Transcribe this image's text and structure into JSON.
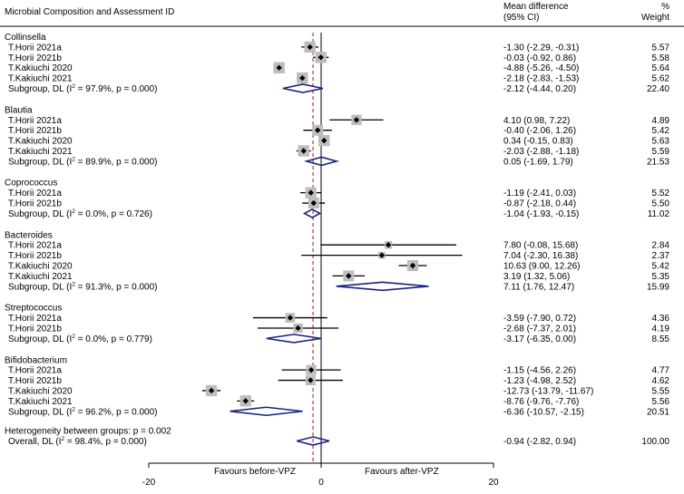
{
  "chart_data": {
    "type": "forest",
    "title_col": "Microbial Composition and Assessment ID",
    "effect_header": [
      "Mean difference",
      "(95% CI)"
    ],
    "weight_header": [
      "%",
      "Weight"
    ],
    "xlim": [
      -20,
      20
    ],
    "xticks": [
      -20,
      0,
      20
    ],
    "reference_line": -0.94,
    "favours_left": "Favours before-VPZ",
    "favours_right": "Favours after-VPZ",
    "groups": [
      {
        "name": "Collinsella",
        "studies": [
          {
            "label": "T.Horii 2021a",
            "md": -1.3,
            "lo": -2.29,
            "hi": -0.31,
            "ci_text": "-1.30 (-2.29, -0.31)",
            "weight": "5.57"
          },
          {
            "label": "T.Horii 2021b",
            "md": -0.03,
            "lo": -0.92,
            "hi": 0.86,
            "ci_text": "-0.03 (-0.92, 0.86)",
            "weight": "5.58"
          },
          {
            "label": "T.Kakiuchi 2020",
            "md": -4.88,
            "lo": -5.26,
            "hi": -4.5,
            "ci_text": "-4.88 (-5.26, -4.50)",
            "weight": "5.64"
          },
          {
            "label": "T.Kakiuchi 2021",
            "md": -2.18,
            "lo": -2.83,
            "hi": -1.53,
            "ci_text": "-2.18 (-2.83, -1.53)",
            "weight": "5.62"
          }
        ],
        "subgroup": {
          "label_pre": "Subgroup, DL (I",
          "label_post": " = 97.9%, p = 0.000)",
          "md": -2.12,
          "lo": -4.44,
          "hi": 0.2,
          "ci_text": "-2.12 (-4.44, 0.20)",
          "weight": "22.40"
        }
      },
      {
        "name": "Blautia",
        "studies": [
          {
            "label": "T.Horii 2021a",
            "md": 4.1,
            "lo": 0.98,
            "hi": 7.22,
            "ci_text": "4.10 (0.98, 7.22)",
            "weight": "4.89"
          },
          {
            "label": "T.Horii 2021b",
            "md": -0.4,
            "lo": -2.06,
            "hi": 1.26,
            "ci_text": "-0.40 (-2.06, 1.26)",
            "weight": "5.42"
          },
          {
            "label": "T.Kakiuchi 2020",
            "md": 0.34,
            "lo": -0.15,
            "hi": 0.83,
            "ci_text": "0.34 (-0.15, 0.83)",
            "weight": "5.63"
          },
          {
            "label": "T.Kakiuchi 2021",
            "md": -2.03,
            "lo": -2.88,
            "hi": -1.18,
            "ci_text": "-2.03 (-2.88, -1.18)",
            "weight": "5.59"
          }
        ],
        "subgroup": {
          "label_pre": "Subgroup, DL (I",
          "label_post": " = 89.9%, p = 0.000)",
          "md": 0.05,
          "lo": -1.69,
          "hi": 1.79,
          "ci_text": "0.05 (-1.69, 1.79)",
          "weight": "21.53"
        }
      },
      {
        "name": "Coprococcus",
        "studies": [
          {
            "label": "T.Horii 2021a",
            "md": -1.19,
            "lo": -2.41,
            "hi": 0.03,
            "ci_text": "-1.19 (-2.41, 0.03)",
            "weight": "5.52"
          },
          {
            "label": "T.Horii 2021b",
            "md": -0.87,
            "lo": -2.18,
            "hi": 0.44,
            "ci_text": "-0.87 (-2.18, 0.44)",
            "weight": "5.50"
          }
        ],
        "subgroup": {
          "label_pre": "Subgroup, DL (I",
          "label_post": " = 0.0%, p = 0.726)",
          "md": -1.04,
          "lo": -1.93,
          "hi": -0.15,
          "ci_text": "-1.04 (-1.93, -0.15)",
          "weight": "11.02"
        }
      },
      {
        "name": "Bacteroides",
        "studies": [
          {
            "label": "T.Horii 2021a",
            "md": 7.8,
            "lo": -0.08,
            "hi": 15.68,
            "ci_text": "7.80 (-0.08, 15.68)",
            "weight": "2.84"
          },
          {
            "label": "T.Horii 2021b",
            "md": 7.04,
            "lo": -2.3,
            "hi": 16.38,
            "ci_text": "7.04 (-2.30, 16.38)",
            "weight": "2.37"
          },
          {
            "label": "T.Kakiuchi 2020",
            "md": 10.63,
            "lo": 9.0,
            "hi": 12.26,
            "ci_text": "10.63 (9.00, 12.26)",
            "weight": "5.42"
          },
          {
            "label": "T.Kakiuchi 2021",
            "md": 3.19,
            "lo": 1.32,
            "hi": 5.06,
            "ci_text": "3.19 (1.32, 5.06)",
            "weight": "5.35"
          }
        ],
        "subgroup": {
          "label_pre": "Subgroup, DL (I",
          "label_post": " = 91.3%, p = 0.000)",
          "md": 7.11,
          "lo": 1.76,
          "hi": 12.47,
          "ci_text": "7.11 (1.76, 12.47)",
          "weight": "15.99"
        }
      },
      {
        "name": "Streptococcus",
        "studies": [
          {
            "label": "T.Horii 2021a",
            "md": -3.59,
            "lo": -7.9,
            "hi": 0.72,
            "ci_text": "-3.59 (-7.90, 0.72)",
            "weight": "4.36"
          },
          {
            "label": "T.Horii 2021b",
            "md": -2.68,
            "lo": -7.37,
            "hi": 2.01,
            "ci_text": "-2.68 (-7.37, 2.01)",
            "weight": "4.19"
          }
        ],
        "subgroup": {
          "label_pre": "Subgroup, DL (I",
          "label_post": " = 0.0%, p = 0.779)",
          "md": -3.17,
          "lo": -6.35,
          "hi": 0.0,
          "ci_text": "-3.17 (-6.35, 0.00)",
          "weight": "8.55"
        }
      },
      {
        "name": "Bifidobacterium",
        "studies": [
          {
            "label": "T.Horii 2021a",
            "md": -1.15,
            "lo": -4.56,
            "hi": 2.26,
            "ci_text": "-1.15 (-4.56, 2.26)",
            "weight": "4.77"
          },
          {
            "label": "T.Horii 2021b",
            "md": -1.23,
            "lo": -4.98,
            "hi": 2.52,
            "ci_text": "-1.23 (-4.98, 2.52)",
            "weight": "4.62"
          },
          {
            "label": "T.Kakiuchi 2020",
            "md": -12.73,
            "lo": -13.79,
            "hi": -11.67,
            "ci_text": "-12.73 (-13.79, -11.67)",
            "weight": "5.55"
          },
          {
            "label": "T.Kakiuchi 2021",
            "md": -8.76,
            "lo": -9.76,
            "hi": -7.76,
            "ci_text": "-8.76 (-9.76, -7.76)",
            "weight": "5.56"
          }
        ],
        "subgroup": {
          "label_pre": "Subgroup, DL (I",
          "label_post": " = 96.2%, p = 0.000)",
          "md": -6.36,
          "lo": -10.57,
          "hi": -2.15,
          "ci_text": "-6.36 (-10.57, -2.15)",
          "weight": "20.51"
        }
      }
    ],
    "heterogeneity_text": "Heterogeneity between groups: p = 0.002",
    "overall": {
      "label_pre": "Overall, DL (I",
      "label_post": " = 98.4%, p = 0.000)",
      "md": -0.94,
      "lo": -2.82,
      "hi": 0.94,
      "ci_text": "-0.94 (-2.82, 0.94)",
      "weight": "100.00"
    },
    "superscript": "2",
    "colors": {
      "diamond": "#1a237e",
      "square": "#bdbdbd",
      "reference": "#c0392b",
      "text": "#000000"
    }
  }
}
